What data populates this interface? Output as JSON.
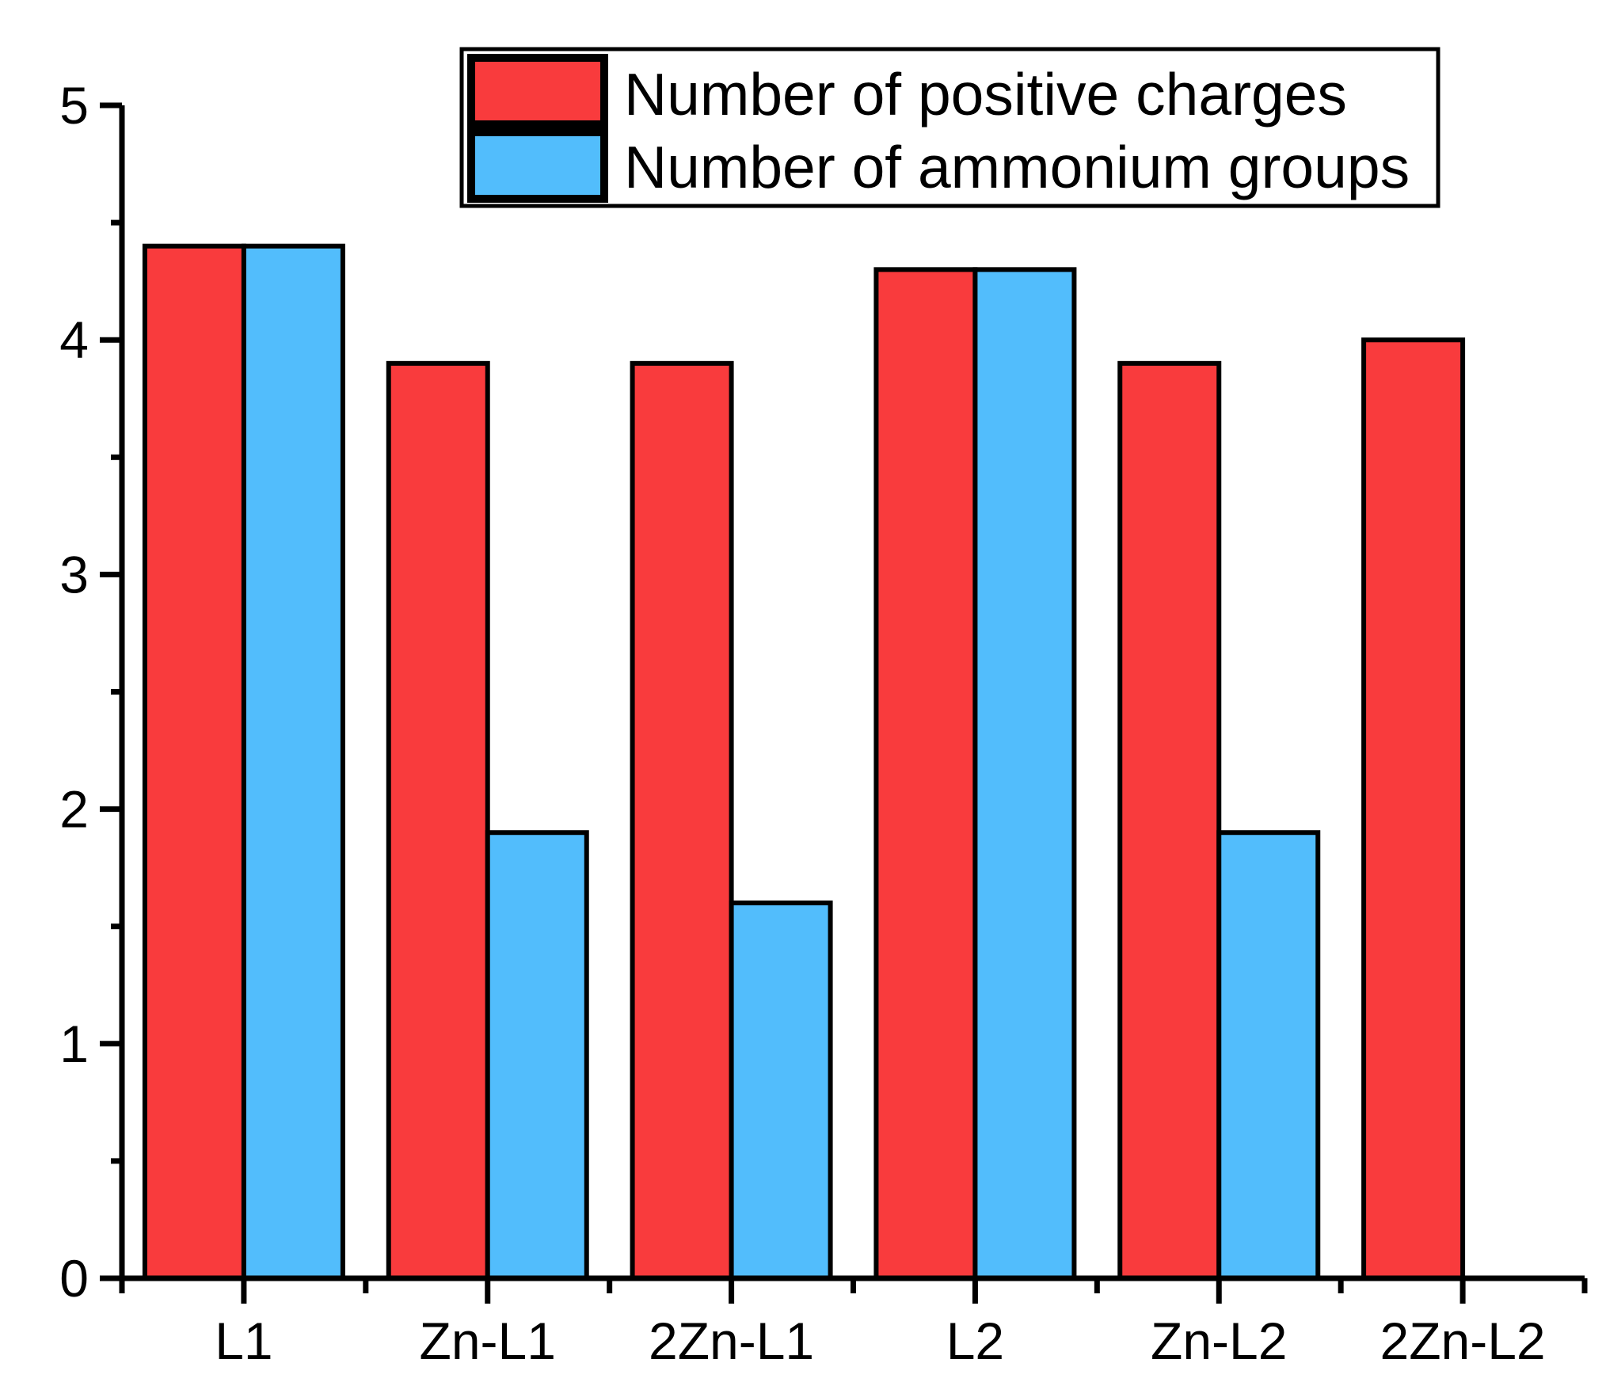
{
  "figure": {
    "background_color": "#ffffff",
    "axis_color": "#000000"
  },
  "chart_data": {
    "type": "bar",
    "title": "",
    "xlabel": "",
    "ylabel": "",
    "categories": [
      "L1",
      "Zn-L1",
      "2Zn-L1",
      "L2",
      "Zn-L2",
      "2Zn-L2"
    ],
    "series": [
      {
        "name": "Number of positive charges",
        "color": "#F93B3D",
        "values": [
          4.4,
          3.9,
          3.9,
          4.3,
          3.9,
          4.0
        ]
      },
      {
        "name": "Number of ammonium groups",
        "color": "#52BDFC",
        "values": [
          4.4,
          1.9,
          1.6,
          4.3,
          1.9,
          0
        ]
      }
    ],
    "ylim": [
      0,
      5
    ],
    "ytick_labels": [
      "0",
      "1",
      "2",
      "3",
      "4",
      "5"
    ],
    "y_major_step": 1,
    "y_minor_step": 0.5,
    "grid": false,
    "bar_outline_color": "#000000",
    "legend": {
      "position": "top-center",
      "border_color": "#000000",
      "background": "#ffffff",
      "entries": [
        "Number of positive charges",
        "Number of ammonium groups"
      ]
    }
  }
}
